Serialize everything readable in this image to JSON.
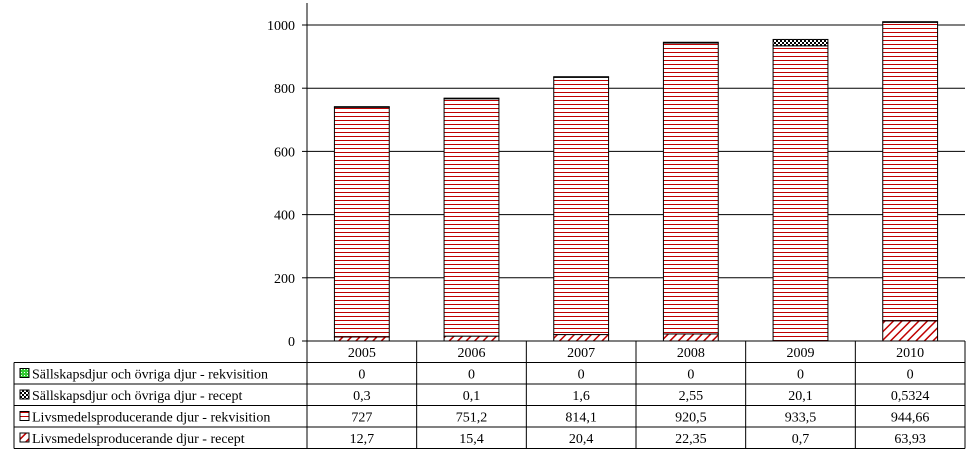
{
  "chart_data": {
    "type": "bar",
    "stacked": true,
    "categories": [
      "2005",
      "2006",
      "2007",
      "2008",
      "2009",
      "2010"
    ],
    "series": [
      {
        "name": "Sällskapsdjur och övriga djur - rekvisition",
        "values": [
          0,
          0,
          0,
          0,
          0,
          0
        ],
        "labels": [
          "0",
          "0",
          "0",
          "0",
          "0",
          "0"
        ],
        "color": "#33cc33",
        "pattern": "grid-green"
      },
      {
        "name": "Sällskapsdjur och övriga djur - recept",
        "values": [
          0.3,
          0.1,
          1.6,
          2.55,
          20.1,
          0.5324
        ],
        "labels": [
          "0,3",
          "0,1",
          "1,6",
          "2,55",
          "20,1",
          "0,5324"
        ],
        "color": "#000000",
        "pattern": "checker"
      },
      {
        "name": "Livsmedelsproducerande djur - rekvisition",
        "values": [
          727,
          751.2,
          814.1,
          920.5,
          933.5,
          944.66
        ],
        "labels": [
          "727",
          "751,2",
          "814,1",
          "920,5",
          "933,5",
          "944,66"
        ],
        "color": "#c00000",
        "pattern": "horizontal-lines"
      },
      {
        "name": "Livsmedelsproducerande djur - recept",
        "values": [
          12.7,
          15.4,
          20.4,
          22.35,
          0.7,
          63.93
        ],
        "labels": [
          "12,7",
          "15,4",
          "20,4",
          "22,35",
          "0,7",
          "63,93"
        ],
        "color": "#c00000",
        "pattern": "diagonal"
      }
    ],
    "ylim": [
      0,
      1000
    ],
    "yticks": [
      "0",
      "200",
      "400",
      "600",
      "800",
      "1000"
    ],
    "title": "",
    "xlabel": "",
    "ylabel": "",
    "grid": true,
    "legend": "data-table"
  }
}
